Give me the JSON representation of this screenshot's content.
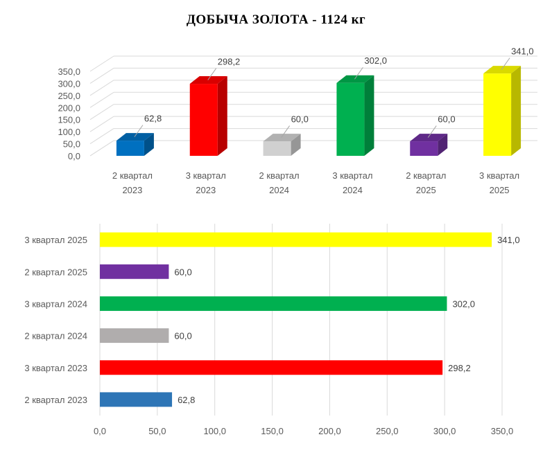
{
  "title": "ДОБЫЧА  ЗОЛОТА  - 1124 кг",
  "colors": {
    "2 квартал 2023": "#0070C0",
    "3 квартал 2023": "#FF0000",
    "2 квартал 2024": "#D0D0D0",
    "3 квартал 2024": "#00B050",
    "2 квартал 2025": "#7030A0",
    "3 квартал 2025": "#FFFF00"
  },
  "chart_data": [
    {
      "type": "bar",
      "style": "3d-column",
      "categories": [
        [
          "2 квартал",
          "2023"
        ],
        [
          "3 квартал",
          "2023"
        ],
        [
          "2 квартал",
          "2024"
        ],
        [
          "3 квартал",
          "2024"
        ],
        [
          "2 квартал",
          "2025"
        ],
        [
          "3 квартал",
          "2025"
        ]
      ],
      "values": [
        62.8,
        298.2,
        60.0,
        302.0,
        60.0,
        341.0
      ],
      "data_labels": [
        "62,8",
        "298,2",
        "60,0",
        "302,0",
        "60,0",
        "341,0"
      ],
      "bar_colors": [
        "#0070C0",
        "#FF0000",
        "#D0D0D0",
        "#00B050",
        "#7030A0",
        "#FFFF00"
      ],
      "ylim": [
        0,
        350
      ],
      "yticks": [
        "0,0",
        "50,0",
        "100,0",
        "150,0",
        "200,0",
        "250,0",
        "300,0",
        "350,0"
      ],
      "grid": true
    },
    {
      "type": "bar",
      "orientation": "horizontal",
      "categories": [
        "3 квартал 2025",
        "2 квартал 2025",
        "3 квартал 2024",
        "2 квартал 2024",
        "3 квартал 2023",
        "2 квартал 2023"
      ],
      "values": [
        341.0,
        60.0,
        302.0,
        60.0,
        298.2,
        62.8
      ],
      "data_labels": [
        "341,0",
        "60,0",
        "302,0",
        "60,0",
        "298,2",
        "62,8"
      ],
      "bar_colors": [
        "#FFFF00",
        "#7030A0",
        "#00B050",
        "#B0ADAD",
        "#FF0000",
        "#2E75B6"
      ],
      "xlim": [
        0,
        350
      ],
      "xticks": [
        "0,0",
        "50,0",
        "100,0",
        "150,0",
        "200,0",
        "250,0",
        "300,0",
        "350,0"
      ],
      "grid": true
    }
  ]
}
